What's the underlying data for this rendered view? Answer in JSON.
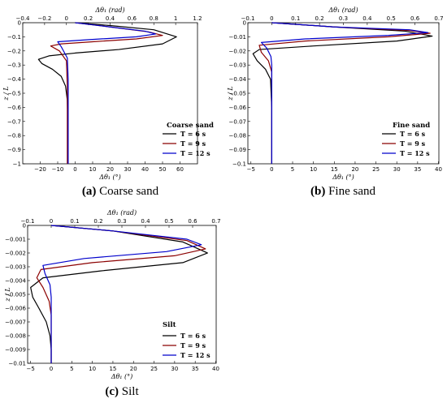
{
  "chart_data": [
    {
      "type": "line",
      "caption_tag": "(a)",
      "caption_text": "Coarse sand",
      "soil_label": "Coarse sand",
      "xlabel": "Δθ₁ (°)",
      "x2label": "Δθ₁ (rad)",
      "ylabel": "z / L",
      "xlim": [
        -30,
        70
      ],
      "x2lim": [
        -0.4,
        1.2
      ],
      "ylim": [
        -1,
        0
      ],
      "xticks": [
        "−20",
        "−10",
        "0",
        "10",
        "20",
        "30",
        "40",
        "50",
        "60"
      ],
      "x2ticks": [
        "−0.4",
        "−0.2",
        "0",
        "0.2",
        "0.4",
        "0.6",
        "0.8",
        "1",
        "1.2"
      ],
      "yticks": [
        "0",
        "−0.1",
        "−0.2",
        "−0.3",
        "−0.4",
        "−0.5",
        "−0.6",
        "−0.7",
        "−0.8",
        "−0.9",
        "−1"
      ],
      "legend_position": "lower-right",
      "series": [
        {
          "name": "T = 6 s",
          "color": "#000000",
          "x": [
            0,
            20,
            45,
            58,
            50,
            25,
            0,
            -15,
            -21,
            -19,
            -13,
            -8,
            -5.5,
            -4.5,
            -4.2,
            -4.2,
            -4.2
          ],
          "y": [
            0,
            -0.02,
            -0.05,
            -0.1,
            -0.15,
            -0.19,
            -0.215,
            -0.235,
            -0.26,
            -0.29,
            -0.33,
            -0.38,
            -0.45,
            -0.55,
            -0.7,
            -0.85,
            -1.0
          ]
        },
        {
          "name": "T = 9 s",
          "color": "#8B0000",
          "x": [
            0,
            20,
            42,
            50,
            35,
            10,
            -8,
            -14,
            -9,
            -5,
            -4.5,
            -4.5
          ],
          "y": [
            0,
            -0.03,
            -0.065,
            -0.09,
            -0.115,
            -0.135,
            -0.15,
            -0.165,
            -0.2,
            -0.27,
            -0.45,
            -1.0
          ]
        },
        {
          "name": "T = 12 s",
          "color": "#0000CC",
          "x": [
            0,
            20,
            40,
            46,
            35,
            8,
            -10,
            -8,
            -4.5,
            -4,
            -4
          ],
          "y": [
            0,
            -0.03,
            -0.06,
            -0.08,
            -0.1,
            -0.12,
            -0.135,
            -0.17,
            -0.25,
            -0.4,
            -1.0
          ]
        }
      ]
    },
    {
      "type": "line",
      "caption_tag": "(b)",
      "caption_text": "Fine sand",
      "soil_label": "Fine sand",
      "xlabel": "Δθ₁ (°)",
      "x2label": "Δθ₁ (rad)",
      "ylabel": "z / L",
      "xlim": [
        -5.73,
        40.1
      ],
      "x2lim": [
        -0.1,
        0.7
      ],
      "ylim": [
        -0.1,
        0
      ],
      "xticks": [
        "−5",
        "0",
        "5",
        "10",
        "15",
        "20",
        "25",
        "30",
        "35",
        "40"
      ],
      "x2ticks": [
        "−0.1",
        "0",
        "0.1",
        "0.2",
        "0.3",
        "0.4",
        "0.5",
        "0.6",
        "0.7"
      ],
      "yticks": [
        "0",
        "−0.01",
        "−0.02",
        "−0.03",
        "−0.04",
        "−0.05",
        "−0.06",
        "−0.07",
        "−0.08",
        "−0.09",
        "−0.1"
      ],
      "legend_position": "lower-right",
      "series": [
        {
          "name": "T = 6 s",
          "color": "#000000",
          "x": [
            0,
            15,
            32,
            38.5,
            30,
            10,
            -3,
            -4.5,
            -3.5,
            -1.5,
            -0.3,
            0,
            0
          ],
          "y": [
            0,
            -0.003,
            -0.006,
            -0.0095,
            -0.013,
            -0.0165,
            -0.019,
            -0.022,
            -0.027,
            -0.033,
            -0.04,
            -0.06,
            -0.1
          ]
        },
        {
          "name": "T = 9 s",
          "color": "#8B0000",
          "x": [
            0,
            15,
            33,
            38,
            28,
            8,
            -3,
            -2.5,
            -0.8,
            0,
            0
          ],
          "y": [
            0,
            -0.003,
            -0.0055,
            -0.0075,
            -0.01,
            -0.013,
            -0.016,
            -0.021,
            -0.027,
            -0.035,
            -0.1
          ]
        },
        {
          "name": "T = 12 s",
          "color": "#0000CC",
          "x": [
            0,
            15,
            33,
            37.5,
            28,
            8,
            -2.5,
            -1.2,
            -0.2,
            0,
            0
          ],
          "y": [
            0,
            -0.003,
            -0.005,
            -0.007,
            -0.009,
            -0.0115,
            -0.014,
            -0.018,
            -0.024,
            -0.03,
            -0.1
          ]
        }
      ]
    },
    {
      "type": "line",
      "caption_tag": "(c)",
      "caption_text": "Silt",
      "soil_label": "Silt",
      "xlabel": "Δθ₁ (°)",
      "x2label": "Δθ₁ (rad)",
      "ylabel": "z / L",
      "xlim": [
        -5.73,
        40.1
      ],
      "x2lim": [
        -0.1,
        0.7
      ],
      "ylim": [
        -0.01,
        0
      ],
      "xticks": [
        "−5",
        "0",
        "5",
        "10",
        "15",
        "20",
        "25",
        "30",
        "35",
        "40"
      ],
      "x2ticks": [
        "−0.1",
        "0",
        "0.1",
        "0.2",
        "0.3",
        "0.4",
        "0.5",
        "0.6",
        "0.7"
      ],
      "yticks": [
        "0",
        "−0.001",
        "−0.002",
        "−0.003",
        "−0.004",
        "−0.005",
        "−0.006",
        "−0.007",
        "−0.008",
        "−0.009",
        "−0.01"
      ],
      "legend_position": "lower-right",
      "series": [
        {
          "name": "T = 6 s",
          "color": "#000000",
          "x": [
            0,
            15,
            32,
            38,
            32,
            12,
            -2,
            -5,
            -4.5,
            -3,
            -1.2,
            -0.3,
            0,
            0
          ],
          "y": [
            0,
            -0.0004,
            -0.0012,
            -0.002,
            -0.0027,
            -0.0033,
            -0.0038,
            -0.0045,
            -0.0052,
            -0.006,
            -0.007,
            -0.008,
            -0.009,
            -0.01
          ]
        },
        {
          "name": "T = 9 s",
          "color": "#8B0000",
          "x": [
            0,
            15,
            33,
            37.5,
            30,
            10,
            -2.5,
            -3.5,
            -2,
            -0.5,
            0,
            0
          ],
          "y": [
            0,
            -0.0004,
            -0.0011,
            -0.0017,
            -0.0022,
            -0.0027,
            -0.0032,
            -0.0038,
            -0.0045,
            -0.0055,
            -0.0065,
            -0.01
          ]
        },
        {
          "name": "T = 12 s",
          "color": "#0000CC",
          "x": [
            0,
            15,
            33,
            36.5,
            28,
            8,
            -2,
            -1.5,
            -0.3,
            0,
            0
          ],
          "y": [
            0,
            -0.0004,
            -0.001,
            -0.0014,
            -0.0019,
            -0.0024,
            -0.0029,
            -0.0035,
            -0.0043,
            -0.0052,
            -0.01
          ]
        }
      ]
    }
  ]
}
